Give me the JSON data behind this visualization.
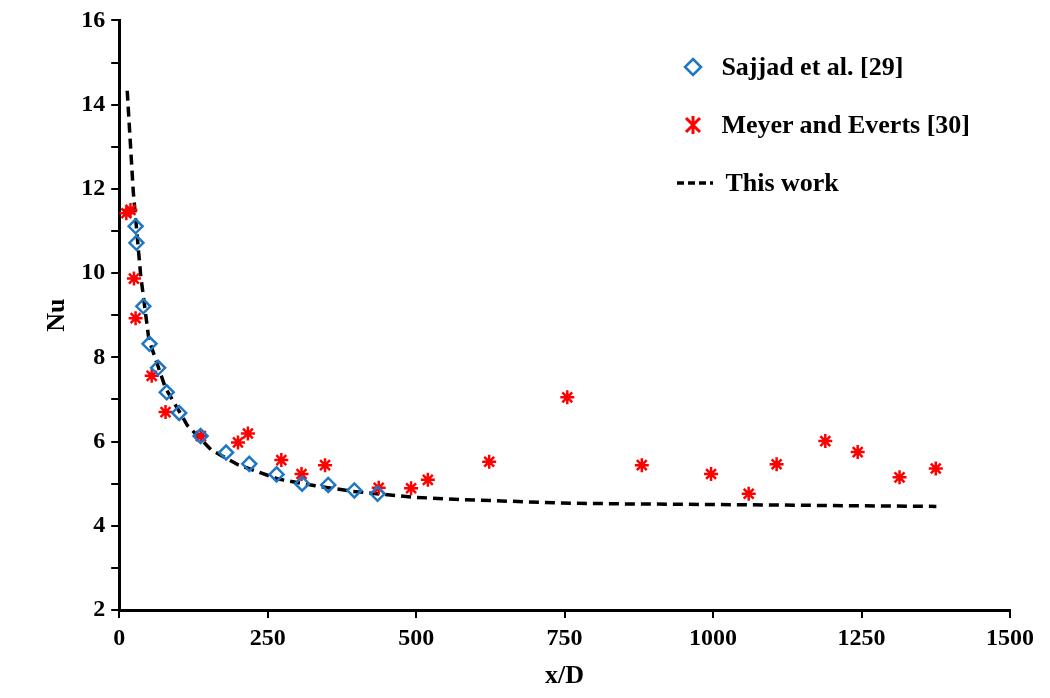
{
  "chart_data": {
    "type": "scatter",
    "xlabel": "x/D",
    "ylabel": "Nu",
    "xlim": [
      0,
      1500
    ],
    "xticks": [
      0,
      250,
      500,
      750,
      1000,
      1250,
      1500
    ],
    "ylim": [
      2,
      16
    ],
    "yticks": [
      2,
      {
        "value": 3,
        "label": null
      },
      4,
      {
        "value": 5,
        "label": null
      },
      6,
      {
        "value": 7,
        "label": null
      },
      8,
      {
        "value": 9,
        "label": null
      },
      10,
      {
        "value": 11,
        "label": null
      },
      12,
      {
        "value": 13,
        "label": null
      },
      14,
      {
        "value": 15,
        "label": null
      },
      16
    ],
    "grid": false,
    "legend": "top right",
    "series": [
      {
        "name": "Sajjad et al. [29]",
        "marker": "diamond",
        "color": "#1f77c4",
        "x": [
          27.6,
          29,
          40.6,
          51,
          65.5,
          80,
          101,
          137,
          180,
          219,
          265,
          308,
          352,
          396,
          435
        ],
        "values": [
          11.11,
          10.72,
          9.21,
          8.32,
          7.75,
          7.17,
          6.68,
          6.13,
          5.74,
          5.47,
          5.22,
          5.0,
          4.97,
          4.84,
          4.76
        ]
      },
      {
        "name": "Meyer and Everts [30]",
        "marker": "cross",
        "color": "#ff0000",
        "x": [
          12,
          19,
          24.8,
          27.6,
          54.7,
          78,
          137.6,
          200,
          216.7,
          273,
          307,
          346.6,
          437,
          491.5,
          519.7,
          623,
          754.5,
          880,
          996.6,
          1060,
          1107,
          1189,
          1243.5,
          1314,
          1375
        ],
        "values": [
          11.42,
          11.5,
          9.87,
          8.93,
          7.56,
          6.7,
          6.13,
          5.98,
          6.19,
          5.56,
          5.23,
          5.44,
          4.9,
          4.89,
          5.09,
          5.52,
          7.05,
          5.44,
          5.23,
          4.76,
          5.46,
          6.01,
          5.75,
          5.15,
          5.36
        ]
      },
      {
        "name": "This work",
        "type": "line",
        "marker": "none",
        "line_style": "dashed",
        "color": "#000000",
        "x": [
          13.5,
          23.7,
          36,
          50,
          78,
          115,
          155,
          200,
          267.5,
          330,
          391.6,
          492.6,
          580,
          662,
          741,
          850,
          1051,
          1200,
          1376
        ],
        "values": [
          14.33,
          11.93,
          9.97,
          8.42,
          7.27,
          6.38,
          5.8,
          5.45,
          5.11,
          4.95,
          4.82,
          4.68,
          4.62,
          4.58,
          4.54,
          4.52,
          4.5,
          4.48,
          4.46
        ]
      }
    ]
  }
}
